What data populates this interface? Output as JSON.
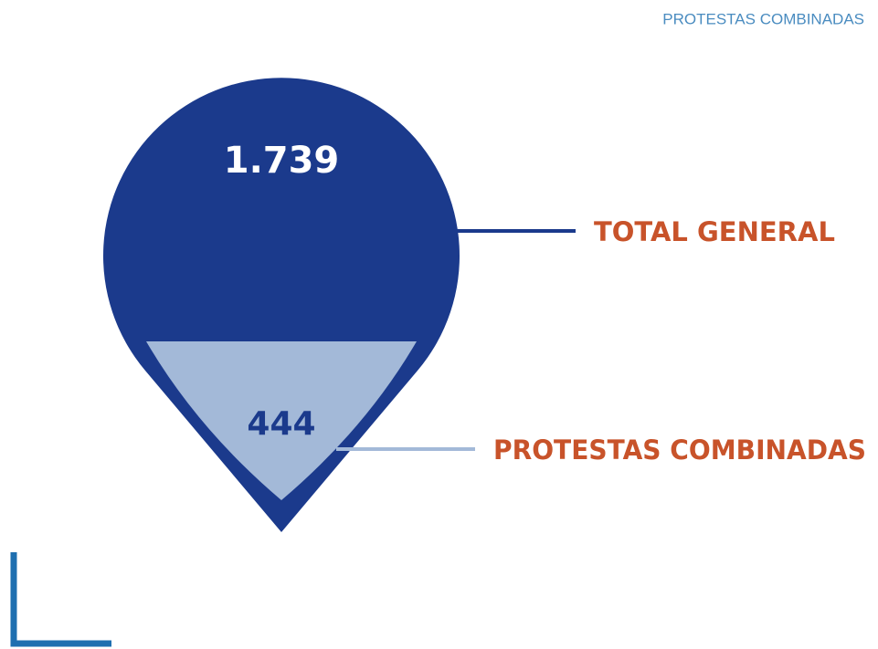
{
  "header": {
    "title": "PROTESTAS COMBINADAS"
  },
  "items": [
    {
      "value_label": "1.739",
      "label": "TOTAL GENERAL"
    },
    {
      "value_label": "444",
      "label": "PROTESTAS COMBINADAS"
    }
  ]
}
